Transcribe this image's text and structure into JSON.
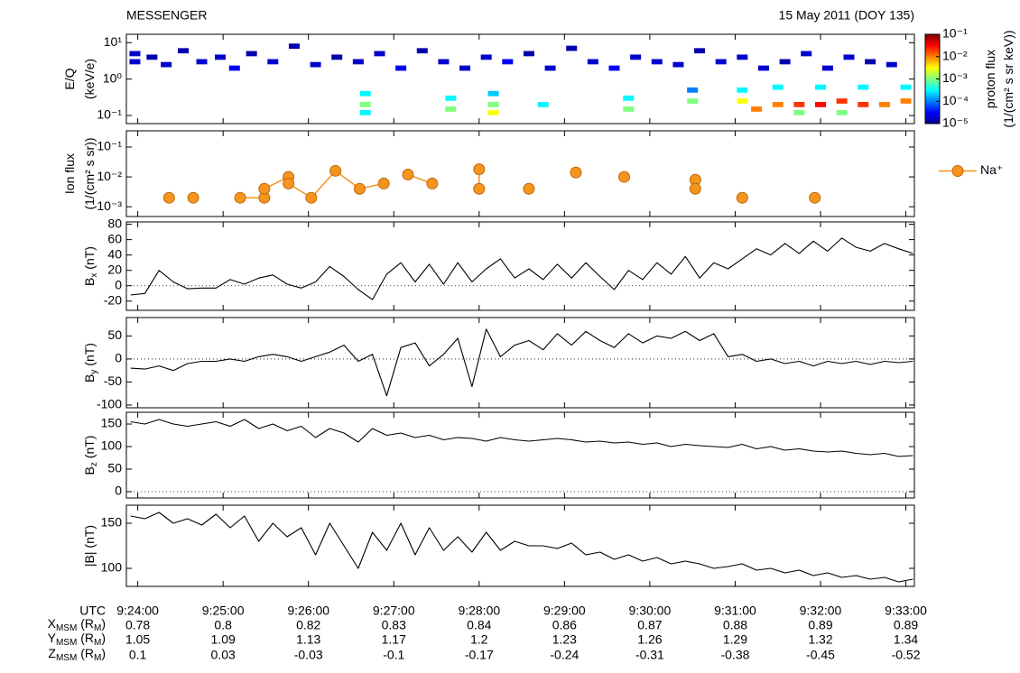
{
  "header": {
    "left": "MESSENGER",
    "right": "15 May 2011 (DOY 135)"
  },
  "time_axis": {
    "label": "UTC",
    "xlim": [
      "9:23:52",
      "9:33:06"
    ],
    "xticks": [
      "9:24:00",
      "9:25:00",
      "9:26:00",
      "9:27:00",
      "9:28:00",
      "9:29:00",
      "9:30:00",
      "9:31:00",
      "9:32:00",
      "9:33:00"
    ]
  },
  "ephemeris": [
    {
      "label": [
        "X",
        "MSM",
        " (R",
        "M",
        ")"
      ],
      "values": [
        0.78,
        0.8,
        0.82,
        0.83,
        0.84,
        0.86,
        0.87,
        0.88,
        0.89,
        0.89
      ]
    },
    {
      "label": [
        "Y",
        "MSM",
        " (R",
        "M",
        ")"
      ],
      "values": [
        1.05,
        1.09,
        1.13,
        1.17,
        1.2,
        1.23,
        1.26,
        1.29,
        1.32,
        1.34
      ]
    },
    {
      "label": [
        "Z",
        "MSM",
        " (R",
        "M",
        ")"
      ],
      "values": [
        0.1,
        0.03,
        -0.03,
        -0.1,
        -0.17,
        -0.24,
        -0.31,
        -0.38,
        -0.45,
        -0.52
      ]
    }
  ],
  "chart_data": [
    {
      "type": "spectrogram",
      "y_label": [
        [
          "E/Q"
        ],
        [
          "(keV/e)"
        ]
      ],
      "log_y": true,
      "ylim": [
        0.06,
        17
      ],
      "yticks": [
        {
          "value": 0.1,
          "label": "10⁻¹"
        },
        {
          "value": 1,
          "label": "10⁰"
        },
        {
          "value": 10,
          "label": "10¹"
        }
      ],
      "x": [
        "9:23:58",
        "9:23:58",
        "9:24:10",
        "9:24:20",
        "9:24:32",
        "9:24:45",
        "9:24:58",
        "9:25:08",
        "9:25:20",
        "9:25:35",
        "9:25:50",
        "9:26:05",
        "9:26:20",
        "9:26:35",
        "9:26:50",
        "9:27:05",
        "9:27:20",
        "9:27:35",
        "9:27:50",
        "9:28:05",
        "9:28:20",
        "9:28:35",
        "9:28:50",
        "9:29:05",
        "9:29:20",
        "9:29:35",
        "9:29:50",
        "9:30:05",
        "9:30:20",
        "9:30:35",
        "9:30:50",
        "9:31:05",
        "9:31:20",
        "9:31:35",
        "9:31:50",
        "9:32:05",
        "9:32:20",
        "9:32:35",
        "9:32:50",
        "9:26:40",
        "9:26:40",
        "9:26:40",
        "9:27:40",
        "9:27:40",
        "9:28:10",
        "9:28:10",
        "9:28:10",
        "9:28:45",
        "9:29:45",
        "9:29:45",
        "9:30:30",
        "9:30:30",
        "9:31:05",
        "9:31:05",
        "9:31:15",
        "9:31:30",
        "9:31:45",
        "9:32:00",
        "9:32:15",
        "9:32:30",
        "9:32:45",
        "9:33:00",
        "9:31:30",
        "9:32:00",
        "9:32:30",
        "9:33:00",
        "9:31:45",
        "9:32:15"
      ],
      "energy": [
        5,
        3,
        4,
        2.5,
        6,
        3,
        4,
        2,
        5,
        3,
        8,
        2.5,
        4,
        3,
        5,
        2,
        6,
        3,
        2,
        4,
        3,
        5,
        2,
        7,
        3,
        2,
        4,
        3,
        2.5,
        6,
        3,
        4,
        2,
        3,
        5,
        2,
        4,
        3,
        2.5,
        0.4,
        0.2,
        0.12,
        0.3,
        0.15,
        0.4,
        0.2,
        0.12,
        0.2,
        0.3,
        0.15,
        0.5,
        0.25,
        0.5,
        0.25,
        0.15,
        0.2,
        0.2,
        0.2,
        0.25,
        0.2,
        0.2,
        0.25,
        0.6,
        0.6,
        0.6,
        0.6,
        0.12,
        0.12
      ],
      "values": [
        2e-05,
        2e-05,
        1.5e-05,
        2e-05,
        1.5e-05,
        2e-05,
        2e-05,
        3e-05,
        1.5e-05,
        2e-05,
        1.5e-05,
        2e-05,
        1.5e-05,
        2e-05,
        2e-05,
        3e-05,
        1.5e-05,
        2e-05,
        2e-05,
        2e-05,
        3e-05,
        1.5e-05,
        2e-05,
        1.5e-05,
        2e-05,
        3e-05,
        2e-05,
        2e-05,
        2e-05,
        1.5e-05,
        2e-05,
        2e-05,
        2e-05,
        1.5e-05,
        2e-05,
        2e-05,
        2e-05,
        1.5e-05,
        2e-05,
        0.0003,
        0.001,
        0.0003,
        0.0003,
        0.001,
        0.0002,
        0.001,
        0.003,
        0.0003,
        0.0003,
        0.001,
        0.0001,
        0.001,
        0.0003,
        0.003,
        0.01,
        0.01,
        0.02,
        0.03,
        0.02,
        0.02,
        0.01,
        0.01,
        0.0003,
        0.0003,
        0.0003,
        0.0003,
        0.001,
        0.001
      ],
      "colorbar": {
        "label": [
          [
            "proton flux"
          ],
          [
            "(1/(cm² s sr keV))"
          ]
        ],
        "lim": [
          1e-05,
          0.1
        ],
        "ticks": [
          {
            "value": 1e-05,
            "label": "10⁻⁵"
          },
          {
            "value": 0.0001,
            "label": "10⁻⁴"
          },
          {
            "value": 0.001,
            "label": "10⁻³"
          },
          {
            "value": 0.01,
            "label": "10⁻²"
          },
          {
            "value": 0.1,
            "label": "10⁻¹"
          }
        ],
        "colormap": "jet"
      }
    },
    {
      "type": "line",
      "markers": true,
      "y_label": [
        [
          "Ion flux"
        ],
        [
          "(1/(cm² s sr))"
        ]
      ],
      "log_y": true,
      "ylim": [
        0.00047,
        0.35
      ],
      "yticks": [
        {
          "value": 0.001,
          "label": "10⁻³"
        },
        {
          "value": 0.01,
          "label": "10⁻²"
        },
        {
          "value": 0.1,
          "label": "10⁻¹"
        }
      ],
      "legend": "right",
      "x": [
        "9:24:22",
        null,
        "9:24:39",
        null,
        "9:25:12",
        "9:25:29",
        "9:25:29",
        "9:25:46",
        "9:25:46",
        "9:26:02",
        "9:26:19",
        "9:26:36",
        "9:26:53",
        null,
        "9:27:10",
        "9:27:27",
        null,
        "9:28:00",
        "9:28:00",
        null,
        "9:28:35",
        null,
        "9:29:08",
        null,
        "9:29:42",
        null,
        "9:30:32",
        "9:30:32",
        null,
        "9:31:05",
        null,
        "9:31:56"
      ],
      "series": [
        {
          "name": "Na⁺",
          "color": "#f7941d",
          "values": [
            0.002,
            null,
            0.002,
            null,
            0.002,
            0.002,
            0.004,
            0.01,
            0.006,
            0.002,
            0.016,
            0.004,
            0.006,
            null,
            0.012,
            0.006,
            null,
            0.018,
            0.004,
            null,
            0.004,
            null,
            0.014,
            null,
            0.01,
            null,
            0.008,
            0.004,
            null,
            0.002,
            null,
            0.002
          ]
        }
      ]
    },
    {
      "type": "line",
      "y_label": [
        [
          "B",
          "x",
          " (nT)"
        ]
      ],
      "ylim": [
        -32,
        83
      ],
      "yticks": [
        -20,
        0,
        20,
        40,
        60,
        80
      ],
      "zero_line": true,
      "color": "#000000",
      "x": [
        "9:23:55",
        "9:24:05",
        "9:24:15",
        "9:24:25",
        "9:24:35",
        "9:24:45",
        "9:24:55",
        "9:25:05",
        "9:25:15",
        "9:25:25",
        "9:25:35",
        "9:25:45",
        "9:25:55",
        "9:26:05",
        "9:26:15",
        "9:26:25",
        "9:26:35",
        "9:26:45",
        "9:26:55",
        "9:27:05",
        "9:27:15",
        "9:27:25",
        "9:27:35",
        "9:27:45",
        "9:27:55",
        "9:28:05",
        "9:28:15",
        "9:28:25",
        "9:28:35",
        "9:28:45",
        "9:28:55",
        "9:29:05",
        "9:29:15",
        "9:29:25",
        "9:29:35",
        "9:29:45",
        "9:29:55",
        "9:30:05",
        "9:30:15",
        "9:30:25",
        "9:30:35",
        "9:30:45",
        "9:30:55",
        "9:31:05",
        "9:31:15",
        "9:31:25",
        "9:31:35",
        "9:31:45",
        "9:31:55",
        "9:32:05",
        "9:32:15",
        "9:32:25",
        "9:32:35",
        "9:32:45",
        "9:32:55",
        "9:33:05"
      ],
      "values": [
        -12,
        -10,
        20,
        5,
        -4,
        -3,
        -3,
        8,
        2,
        10,
        14,
        2,
        -3,
        5,
        25,
        12,
        -5,
        -18,
        15,
        30,
        5,
        28,
        2,
        30,
        5,
        22,
        35,
        10,
        22,
        8,
        28,
        10,
        30,
        12,
        -5,
        20,
        8,
        30,
        15,
        38,
        10,
        30,
        22,
        35,
        48,
        40,
        55,
        42,
        58,
        45,
        62,
        50,
        45,
        55,
        48,
        42
      ]
    },
    {
      "type": "line",
      "y_label": [
        [
          "B",
          "y",
          " (nT)"
        ]
      ],
      "ylim": [
        -106,
        90
      ],
      "yticks": [
        -100,
        -50,
        0,
        50
      ],
      "zero_line": true,
      "color": "#000000",
      "x": [
        "9:23:55",
        "9:24:05",
        "9:24:15",
        "9:24:25",
        "9:24:35",
        "9:24:45",
        "9:24:55",
        "9:25:05",
        "9:25:15",
        "9:25:25",
        "9:25:35",
        "9:25:45",
        "9:25:55",
        "9:26:05",
        "9:26:15",
        "9:26:25",
        "9:26:35",
        "9:26:45",
        "9:26:55",
        "9:27:05",
        "9:27:15",
        "9:27:25",
        "9:27:35",
        "9:27:45",
        "9:27:55",
        "9:28:05",
        "9:28:15",
        "9:28:25",
        "9:28:35",
        "9:28:45",
        "9:28:55",
        "9:29:05",
        "9:29:15",
        "9:29:25",
        "9:29:35",
        "9:29:45",
        "9:29:55",
        "9:30:05",
        "9:30:15",
        "9:30:25",
        "9:30:35",
        "9:30:45",
        "9:30:55",
        "9:31:05",
        "9:31:15",
        "9:31:25",
        "9:31:35",
        "9:31:45",
        "9:31:55",
        "9:32:05",
        "9:32:15",
        "9:32:25",
        "9:32:35",
        "9:32:45",
        "9:32:55",
        "9:33:05"
      ],
      "values": [
        -20,
        -22,
        -15,
        -25,
        -10,
        -5,
        -5,
        0,
        -5,
        5,
        10,
        5,
        -5,
        5,
        15,
        30,
        -5,
        10,
        -80,
        25,
        35,
        -15,
        10,
        45,
        -60,
        65,
        5,
        30,
        40,
        20,
        55,
        30,
        60,
        40,
        25,
        55,
        35,
        50,
        45,
        60,
        40,
        55,
        5,
        10,
        -5,
        0,
        -10,
        -5,
        -15,
        -5,
        -10,
        -5,
        -12,
        -5,
        -8,
        -5
      ]
    },
    {
      "type": "line",
      "y_label": [
        [
          "B",
          "z",
          " (nT)"
        ]
      ],
      "ylim": [
        -14,
        176
      ],
      "yticks": [
        0,
        50,
        100,
        150
      ],
      "zero_line": true,
      "color": "#000000",
      "x": [
        "9:23:55",
        "9:24:05",
        "9:24:15",
        "9:24:25",
        "9:24:35",
        "9:24:45",
        "9:24:55",
        "9:25:05",
        "9:25:15",
        "9:25:25",
        "9:25:35",
        "9:25:45",
        "9:25:55",
        "9:26:05",
        "9:26:15",
        "9:26:25",
        "9:26:35",
        "9:26:45",
        "9:26:55",
        "9:27:05",
        "9:27:15",
        "9:27:25",
        "9:27:35",
        "9:27:45",
        "9:27:55",
        "9:28:05",
        "9:28:15",
        "9:28:25",
        "9:28:35",
        "9:28:45",
        "9:28:55",
        "9:29:05",
        "9:29:15",
        "9:29:25",
        "9:29:35",
        "9:29:45",
        "9:29:55",
        "9:30:05",
        "9:30:15",
        "9:30:25",
        "9:30:35",
        "9:30:45",
        "9:30:55",
        "9:31:05",
        "9:31:15",
        "9:31:25",
        "9:31:35",
        "9:31:45",
        "9:31:55",
        "9:32:05",
        "9:32:15",
        "9:32:25",
        "9:32:35",
        "9:32:45",
        "9:32:55",
        "9:33:05"
      ],
      "values": [
        155,
        150,
        160,
        150,
        145,
        150,
        155,
        145,
        160,
        140,
        150,
        135,
        145,
        120,
        140,
        130,
        110,
        140,
        125,
        130,
        120,
        125,
        115,
        120,
        118,
        112,
        120,
        115,
        112,
        115,
        118,
        115,
        110,
        112,
        108,
        110,
        105,
        108,
        100,
        105,
        102,
        100,
        98,
        105,
        95,
        100,
        92,
        95,
        90,
        88,
        90,
        85,
        82,
        85,
        78,
        80
      ]
    },
    {
      "type": "line",
      "y_label": [
        [
          "|B| (nT)"
        ]
      ],
      "ylim": [
        80,
        170
      ],
      "yticks": [
        100,
        150
      ],
      "color": "#000000",
      "x": [
        "9:23:55",
        "9:24:05",
        "9:24:15",
        "9:24:25",
        "9:24:35",
        "9:24:45",
        "9:24:55",
        "9:25:05",
        "9:25:15",
        "9:25:25",
        "9:25:35",
        "9:25:45",
        "9:25:55",
        "9:26:05",
        "9:26:15",
        "9:26:25",
        "9:26:35",
        "9:26:45",
        "9:26:55",
        "9:27:05",
        "9:27:15",
        "9:27:25",
        "9:27:35",
        "9:27:45",
        "9:27:55",
        "9:28:05",
        "9:28:15",
        "9:28:25",
        "9:28:35",
        "9:28:45",
        "9:28:55",
        "9:29:05",
        "9:29:15",
        "9:29:25",
        "9:29:35",
        "9:29:45",
        "9:29:55",
        "9:30:05",
        "9:30:15",
        "9:30:25",
        "9:30:35",
        "9:30:45",
        "9:30:55",
        "9:31:05",
        "9:31:15",
        "9:31:25",
        "9:31:35",
        "9:31:45",
        "9:31:55",
        "9:32:05",
        "9:32:15",
        "9:32:25",
        "9:32:35",
        "9:32:45",
        "9:32:55",
        "9:33:05"
      ],
      "values": [
        158,
        155,
        162,
        150,
        155,
        148,
        160,
        145,
        158,
        130,
        150,
        135,
        145,
        115,
        150,
        125,
        100,
        140,
        120,
        150,
        115,
        145,
        120,
        135,
        118,
        140,
        120,
        130,
        125,
        125,
        122,
        128,
        115,
        118,
        110,
        115,
        108,
        112,
        105,
        108,
        105,
        100,
        102,
        105,
        98,
        100,
        95,
        98,
        92,
        95,
        90,
        92,
        88,
        90,
        85,
        88
      ]
    }
  ]
}
